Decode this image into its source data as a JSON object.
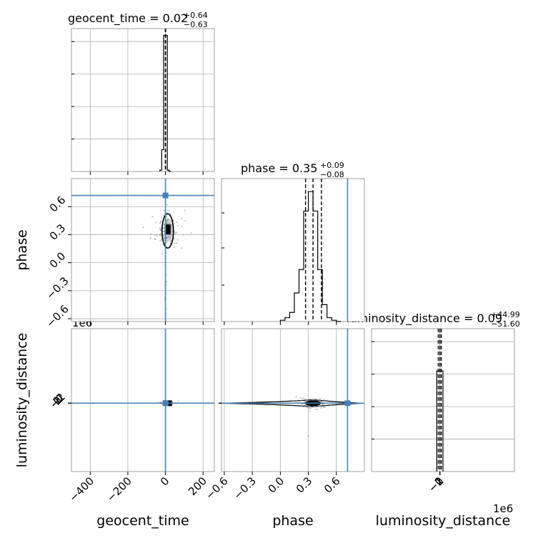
{
  "chart_data": {
    "type": "corner",
    "parameters": [
      "geocent_time",
      "phase",
      "luminosity_distance"
    ],
    "truth_color": "#4682b4",
    "truths": {
      "geocent_time": 0,
      "phase": 0.72,
      "luminosity_distance": 0
    },
    "titles": [
      {
        "param": "geocent_time",
        "text": "geocent_time = 0.02",
        "plus": "+0.64",
        "minus": "−0.63"
      },
      {
        "param": "phase",
        "text": "phase = 0.35",
        "plus": "+0.09",
        "minus": "−0.08"
      },
      {
        "param": "luminosity_distance",
        "text": "luminosity_distance = 0.09",
        "plus": "+44.99",
        "minus": "−51.60"
      }
    ],
    "axis_labels": {
      "x": [
        "geocent_time",
        "phase",
        "luminosity_distance"
      ],
      "y": [
        "phase",
        "luminosity_distance"
      ]
    },
    "ranges": {
      "geocent_time": [
        -500,
        260
      ],
      "phase": [
        -0.63,
        0.9
      ],
      "luminosity_distance": [
        -2200000,
        2400000
      ]
    },
    "ticks": {
      "geocent_time": [
        -400,
        -200,
        0,
        200
      ],
      "phase": [
        -0.6,
        -0.3,
        0.0,
        0.3,
        0.6
      ],
      "luminosity_distance": [
        -2,
        -1,
        0,
        1,
        2
      ]
    },
    "tick_labels": {
      "geocent_time": [
        "−400",
        "−200",
        "0",
        "200"
      ],
      "phase": [
        "−0.6",
        "−0.3",
        "0.0",
        "0.3",
        "0.6"
      ],
      "luminosity_distance": [
        "−2",
        "−1",
        "0",
        "1",
        "2"
      ]
    },
    "offset_texts": [
      "1e6",
      "1e6"
    ],
    "quantiles": {
      "geocent_time": [
        -0.61,
        0.02,
        0.66
      ],
      "phase": [
        0.27,
        0.35,
        0.44
      ],
      "luminosity_distance": [
        -51500,
        90,
        45080
      ]
    },
    "histograms": {
      "geocent_time": {
        "edges": [
          -30,
          -20,
          -10,
          0,
          10,
          20,
          30
        ],
        "counts": [
          0.01,
          0.16,
          1.0,
          1.0,
          0.01,
          0.0
        ]
      },
      "phase": {
        "edges": [
          0.0,
          0.05,
          0.1,
          0.15,
          0.2,
          0.25,
          0.3,
          0.35,
          0.4,
          0.45,
          0.5,
          0.55,
          0.6,
          0.65
        ],
        "counts": [
          0.01,
          0.03,
          0.07,
          0.22,
          0.4,
          0.85,
          1.0,
          0.85,
          0.4,
          0.13,
          0.03,
          0.01,
          0.0
        ]
      },
      "luminosity_distance": {
        "edges": [
          -100000,
          0,
          100000
        ],
        "counts": [
          1.0,
          1.0
        ]
      }
    },
    "hist_ymax": {
      "geocent_time": 1.05,
      "phase": 1.1,
      "luminosity_distance": 1.42
    }
  }
}
